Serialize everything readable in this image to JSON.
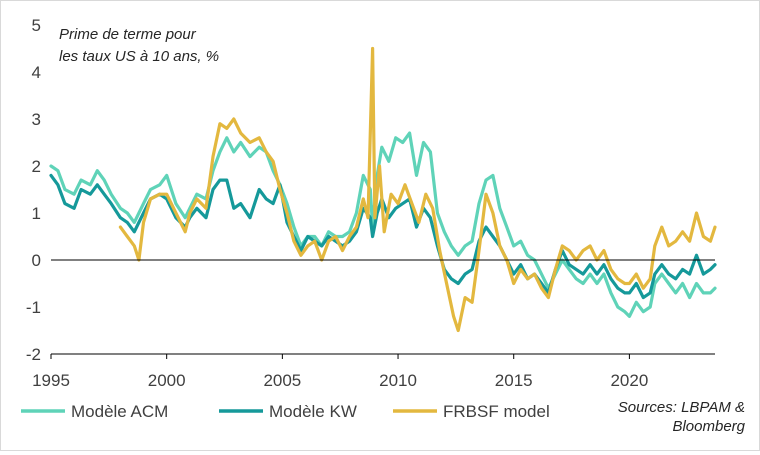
{
  "chart_data": {
    "type": "line",
    "title_lines": [
      "Prime de terme pour",
      "les taux US à 10 ans, %"
    ],
    "xlim": [
      1995,
      2023.7
    ],
    "ylim": [
      -2,
      5
    ],
    "x_ticks": [
      1995,
      2000,
      2005,
      2010,
      2015,
      2020
    ],
    "y_ticks": [
      -2,
      -1,
      0,
      1,
      2,
      3,
      4,
      5
    ],
    "grid": false,
    "legend_position": "bottom-left",
    "source_lines": [
      "Sources: LBPAM &",
      "Bloomberg"
    ],
    "series": [
      {
        "name": "Modèle ACM",
        "color": "#5fd3b8",
        "points": [
          [
            1995.0,
            2.0
          ],
          [
            1995.3,
            1.9
          ],
          [
            1995.6,
            1.5
          ],
          [
            1996.0,
            1.4
          ],
          [
            1996.3,
            1.7
          ],
          [
            1996.7,
            1.6
          ],
          [
            1997.0,
            1.9
          ],
          [
            1997.3,
            1.7
          ],
          [
            1997.6,
            1.4
          ],
          [
            1998.0,
            1.1
          ],
          [
            1998.3,
            1.0
          ],
          [
            1998.6,
            0.8
          ],
          [
            1999.0,
            1.2
          ],
          [
            1999.3,
            1.5
          ],
          [
            1999.7,
            1.6
          ],
          [
            2000.0,
            1.8
          ],
          [
            2000.4,
            1.2
          ],
          [
            2000.8,
            0.9
          ],
          [
            2001.0,
            1.1
          ],
          [
            2001.3,
            1.4
          ],
          [
            2001.7,
            1.3
          ],
          [
            2002.0,
            1.9
          ],
          [
            2002.3,
            2.3
          ],
          [
            2002.6,
            2.6
          ],
          [
            2002.9,
            2.3
          ],
          [
            2003.2,
            2.5
          ],
          [
            2003.6,
            2.2
          ],
          [
            2004.0,
            2.4
          ],
          [
            2004.3,
            2.3
          ],
          [
            2004.6,
            1.9
          ],
          [
            2004.9,
            1.6
          ],
          [
            2005.2,
            1.2
          ],
          [
            2005.5,
            0.7
          ],
          [
            2005.8,
            0.3
          ],
          [
            2006.1,
            0.5
          ],
          [
            2006.4,
            0.5
          ],
          [
            2006.7,
            0.3
          ],
          [
            2007.0,
            0.6
          ],
          [
            2007.3,
            0.5
          ],
          [
            2007.6,
            0.5
          ],
          [
            2007.9,
            0.6
          ],
          [
            2008.2,
            1.0
          ],
          [
            2008.5,
            1.8
          ],
          [
            2008.8,
            1.5
          ],
          [
            2008.9,
            0.7
          ],
          [
            2009.1,
            1.8
          ],
          [
            2009.3,
            2.4
          ],
          [
            2009.6,
            2.1
          ],
          [
            2009.9,
            2.6
          ],
          [
            2010.2,
            2.5
          ],
          [
            2010.5,
            2.7
          ],
          [
            2010.8,
            1.8
          ],
          [
            2011.1,
            2.5
          ],
          [
            2011.4,
            2.3
          ],
          [
            2011.7,
            1.0
          ],
          [
            2012.0,
            0.6
          ],
          [
            2012.3,
            0.3
          ],
          [
            2012.6,
            0.1
          ],
          [
            2012.9,
            0.3
          ],
          [
            2013.2,
            0.4
          ],
          [
            2013.5,
            1.2
          ],
          [
            2013.8,
            1.7
          ],
          [
            2014.1,
            1.8
          ],
          [
            2014.4,
            1.1
          ],
          [
            2014.7,
            0.7
          ],
          [
            2015.0,
            0.3
          ],
          [
            2015.3,
            0.4
          ],
          [
            2015.6,
            0.1
          ],
          [
            2015.9,
            0.0
          ],
          [
            2016.2,
            -0.3
          ],
          [
            2016.5,
            -0.6
          ],
          [
            2016.8,
            -0.3
          ],
          [
            2017.1,
            0.0
          ],
          [
            2017.4,
            -0.2
          ],
          [
            2017.7,
            -0.4
          ],
          [
            2018.0,
            -0.5
          ],
          [
            2018.3,
            -0.3
          ],
          [
            2018.6,
            -0.5
          ],
          [
            2018.9,
            -0.3
          ],
          [
            2019.2,
            -0.7
          ],
          [
            2019.5,
            -1.0
          ],
          [
            2019.8,
            -1.1
          ],
          [
            2020.0,
            -1.2
          ],
          [
            2020.3,
            -0.9
          ],
          [
            2020.6,
            -1.1
          ],
          [
            2020.9,
            -1.0
          ],
          [
            2021.1,
            -0.5
          ],
          [
            2021.4,
            -0.3
          ],
          [
            2021.7,
            -0.5
          ],
          [
            2022.0,
            -0.7
          ],
          [
            2022.3,
            -0.5
          ],
          [
            2022.6,
            -0.8
          ],
          [
            2022.9,
            -0.5
          ],
          [
            2023.2,
            -0.7
          ],
          [
            2023.5,
            -0.7
          ],
          [
            2023.7,
            -0.6
          ]
        ]
      },
      {
        "name": "Modèle KW",
        "color": "#15999a",
        "points": [
          [
            1995.0,
            1.8
          ],
          [
            1995.3,
            1.6
          ],
          [
            1995.6,
            1.2
          ],
          [
            1996.0,
            1.1
          ],
          [
            1996.3,
            1.5
          ],
          [
            1996.7,
            1.4
          ],
          [
            1997.0,
            1.6
          ],
          [
            1997.3,
            1.4
          ],
          [
            1997.6,
            1.2
          ],
          [
            1998.0,
            0.9
          ],
          [
            1998.3,
            0.8
          ],
          [
            1998.6,
            0.6
          ],
          [
            1999.0,
            1.0
          ],
          [
            1999.3,
            1.3
          ],
          [
            1999.7,
            1.4
          ],
          [
            2000.0,
            1.3
          ],
          [
            2000.4,
            0.9
          ],
          [
            2000.8,
            0.7
          ],
          [
            2001.0,
            0.9
          ],
          [
            2001.3,
            1.1
          ],
          [
            2001.7,
            0.9
          ],
          [
            2002.0,
            1.5
          ],
          [
            2002.3,
            1.7
          ],
          [
            2002.6,
            1.7
          ],
          [
            2002.9,
            1.1
          ],
          [
            2003.2,
            1.2
          ],
          [
            2003.6,
            0.9
          ],
          [
            2004.0,
            1.5
          ],
          [
            2004.3,
            1.3
          ],
          [
            2004.6,
            1.2
          ],
          [
            2004.9,
            1.6
          ],
          [
            2005.2,
            0.8
          ],
          [
            2005.5,
            0.5
          ],
          [
            2005.8,
            0.2
          ],
          [
            2006.1,
            0.5
          ],
          [
            2006.4,
            0.4
          ],
          [
            2006.7,
            0.3
          ],
          [
            2007.0,
            0.5
          ],
          [
            2007.3,
            0.4
          ],
          [
            2007.6,
            0.3
          ],
          [
            2007.9,
            0.4
          ],
          [
            2008.2,
            0.6
          ],
          [
            2008.5,
            1.1
          ],
          [
            2008.8,
            0.9
          ],
          [
            2008.9,
            0.5
          ],
          [
            2009.1,
            1.0
          ],
          [
            2009.3,
            1.3
          ],
          [
            2009.6,
            0.9
          ],
          [
            2009.9,
            1.1
          ],
          [
            2010.2,
            1.2
          ],
          [
            2010.5,
            1.3
          ],
          [
            2010.8,
            0.7
          ],
          [
            2011.1,
            1.1
          ],
          [
            2011.4,
            0.9
          ],
          [
            2011.7,
            0.3
          ],
          [
            2012.0,
            -0.2
          ],
          [
            2012.3,
            -0.4
          ],
          [
            2012.6,
            -0.5
          ],
          [
            2012.9,
            -0.3
          ],
          [
            2013.2,
            -0.2
          ],
          [
            2013.5,
            0.4
          ],
          [
            2013.8,
            0.7
          ],
          [
            2014.1,
            0.5
          ],
          [
            2014.4,
            0.3
          ],
          [
            2014.7,
            0.0
          ],
          [
            2015.0,
            -0.3
          ],
          [
            2015.3,
            -0.1
          ],
          [
            2015.6,
            -0.4
          ],
          [
            2015.9,
            -0.3
          ],
          [
            2016.2,
            -0.5
          ],
          [
            2016.5,
            -0.7
          ],
          [
            2016.8,
            -0.2
          ],
          [
            2017.1,
            0.2
          ],
          [
            2017.4,
            -0.1
          ],
          [
            2017.7,
            -0.2
          ],
          [
            2018.0,
            -0.3
          ],
          [
            2018.3,
            -0.1
          ],
          [
            2018.6,
            -0.3
          ],
          [
            2018.9,
            -0.1
          ],
          [
            2019.2,
            -0.4
          ],
          [
            2019.5,
            -0.6
          ],
          [
            2019.8,
            -0.7
          ],
          [
            2020.0,
            -0.7
          ],
          [
            2020.3,
            -0.5
          ],
          [
            2020.6,
            -0.8
          ],
          [
            2020.9,
            -0.7
          ],
          [
            2021.1,
            -0.3
          ],
          [
            2021.4,
            -0.1
          ],
          [
            2021.7,
            -0.3
          ],
          [
            2022.0,
            -0.4
          ],
          [
            2022.3,
            -0.2
          ],
          [
            2022.6,
            -0.3
          ],
          [
            2022.9,
            0.1
          ],
          [
            2023.2,
            -0.3
          ],
          [
            2023.5,
            -0.2
          ],
          [
            2023.7,
            -0.1
          ]
        ]
      },
      {
        "name": "FRBSF model",
        "color": "#e3b83f",
        "points": [
          [
            1998.0,
            0.7
          ],
          [
            1998.3,
            0.5
          ],
          [
            1998.6,
            0.3
          ],
          [
            1998.8,
            0.0
          ],
          [
            1999.0,
            0.8
          ],
          [
            1999.3,
            1.3
          ],
          [
            1999.7,
            1.4
          ],
          [
            2000.0,
            1.4
          ],
          [
            2000.4,
            1.0
          ],
          [
            2000.8,
            0.6
          ],
          [
            2001.0,
            1.0
          ],
          [
            2001.3,
            1.3
          ],
          [
            2001.7,
            1.1
          ],
          [
            2002.0,
            2.2
          ],
          [
            2002.3,
            2.9
          ],
          [
            2002.6,
            2.8
          ],
          [
            2002.9,
            3.0
          ],
          [
            2003.2,
            2.7
          ],
          [
            2003.6,
            2.5
          ],
          [
            2004.0,
            2.6
          ],
          [
            2004.3,
            2.3
          ],
          [
            2004.6,
            2.1
          ],
          [
            2004.9,
            1.5
          ],
          [
            2005.2,
            1.0
          ],
          [
            2005.5,
            0.4
          ],
          [
            2005.8,
            0.1
          ],
          [
            2006.1,
            0.3
          ],
          [
            2006.4,
            0.4
          ],
          [
            2006.7,
            0.0
          ],
          [
            2007.0,
            0.4
          ],
          [
            2007.3,
            0.5
          ],
          [
            2007.6,
            0.2
          ],
          [
            2007.9,
            0.5
          ],
          [
            2008.2,
            0.7
          ],
          [
            2008.5,
            1.3
          ],
          [
            2008.7,
            0.9
          ],
          [
            2008.9,
            4.5
          ],
          [
            2009.0,
            0.9
          ],
          [
            2009.2,
            2.0
          ],
          [
            2009.4,
            0.6
          ],
          [
            2009.7,
            1.4
          ],
          [
            2010.0,
            1.2
          ],
          [
            2010.3,
            1.6
          ],
          [
            2010.6,
            1.2
          ],
          [
            2010.9,
            0.8
          ],
          [
            2011.2,
            1.4
          ],
          [
            2011.5,
            1.1
          ],
          [
            2011.8,
            0.2
          ],
          [
            2012.1,
            -0.5
          ],
          [
            2012.4,
            -1.2
          ],
          [
            2012.6,
            -1.5
          ],
          [
            2012.9,
            -0.8
          ],
          [
            2013.2,
            -0.9
          ],
          [
            2013.5,
            0.2
          ],
          [
            2013.8,
            1.4
          ],
          [
            2014.1,
            1.0
          ],
          [
            2014.4,
            0.3
          ],
          [
            2014.7,
            0.0
          ],
          [
            2015.0,
            -0.5
          ],
          [
            2015.3,
            -0.2
          ],
          [
            2015.6,
            -0.4
          ],
          [
            2015.9,
            -0.3
          ],
          [
            2016.2,
            -0.6
          ],
          [
            2016.5,
            -0.8
          ],
          [
            2016.8,
            -0.2
          ],
          [
            2017.1,
            0.3
          ],
          [
            2017.4,
            0.2
          ],
          [
            2017.7,
            0.0
          ],
          [
            2018.0,
            0.2
          ],
          [
            2018.3,
            0.3
          ],
          [
            2018.6,
            0.0
          ],
          [
            2018.9,
            0.2
          ],
          [
            2019.2,
            -0.2
          ],
          [
            2019.5,
            -0.4
          ],
          [
            2019.8,
            -0.5
          ],
          [
            2020.0,
            -0.5
          ],
          [
            2020.3,
            -0.3
          ],
          [
            2020.6,
            -0.6
          ],
          [
            2020.9,
            -0.4
          ],
          [
            2021.1,
            0.3
          ],
          [
            2021.4,
            0.7
          ],
          [
            2021.7,
            0.3
          ],
          [
            2022.0,
            0.4
          ],
          [
            2022.3,
            0.6
          ],
          [
            2022.6,
            0.4
          ],
          [
            2022.9,
            1.0
          ],
          [
            2023.2,
            0.5
          ],
          [
            2023.5,
            0.4
          ],
          [
            2023.7,
            0.7
          ]
        ]
      }
    ]
  }
}
